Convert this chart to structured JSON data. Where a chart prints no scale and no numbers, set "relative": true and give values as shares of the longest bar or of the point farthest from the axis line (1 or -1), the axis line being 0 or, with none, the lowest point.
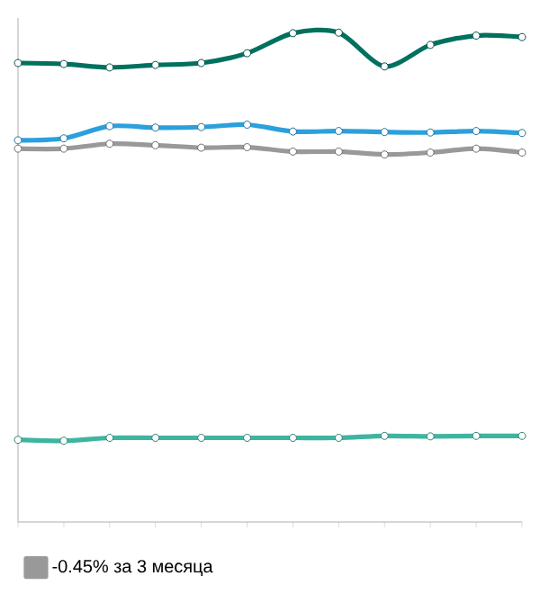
{
  "chart_data": {
    "type": "line",
    "relative": true,
    "categories": [
      null,
      null,
      null,
      null,
      null,
      null,
      null,
      null,
      null,
      null,
      null,
      null
    ],
    "marker": "circle",
    "legend": "bottom left",
    "series": [
      {
        "color": "#00705f",
        "values": [
          0.938,
          0.936,
          0.929,
          0.934,
          0.938,
          0.958,
          0.999,
          1,
          0.931,
          0.975,
          0.994,
          0.991
        ]
      },
      {
        "color": "#2ba0dc",
        "values": [
          0.78,
          0.784,
          0.809,
          0.806,
          0.807,
          0.812,
          0.798,
          0.799,
          0.797,
          0.796,
          0.799,
          0.795
        ]
      },
      {
        "name": "-0.45% за 3 месяца",
        "color": "#999999",
        "values": [
          0.763,
          0.763,
          0.773,
          0.77,
          0.765,
          0.766,
          0.757,
          0.757,
          0.751,
          0.755,
          0.763,
          0.755
        ]
      },
      {
        "color": "#3fb5a0",
        "values": [
          0.168,
          0.166,
          0.172,
          0.172,
          0.172,
          0.172,
          0.172,
          0.172,
          0.176,
          0.175,
          0.176,
          0.176
        ]
      }
    ]
  }
}
